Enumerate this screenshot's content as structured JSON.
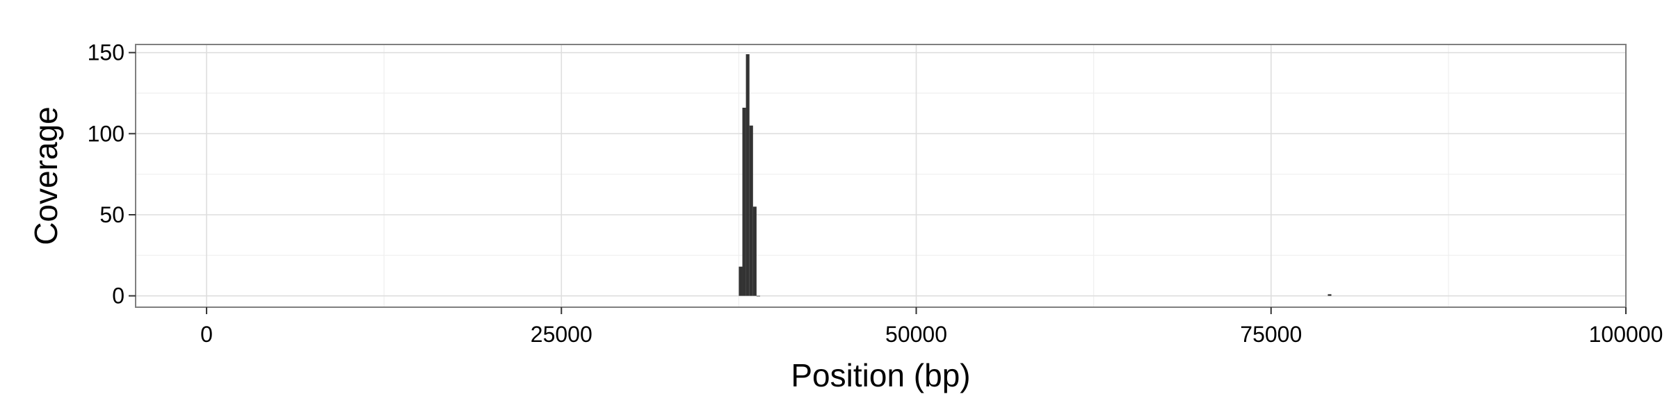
{
  "chart_data": {
    "type": "bar",
    "title": "",
    "xlabel": "Position (bp)",
    "ylabel": "Coverage",
    "xlim": [
      -5000,
      100000
    ],
    "ylim": [
      -7,
      155
    ],
    "x_ticks": [
      0,
      25000,
      50000,
      75000,
      100000
    ],
    "x_tick_labels": [
      "0",
      "25000",
      "50000",
      "75000",
      "100000"
    ],
    "y_ticks": [
      0,
      50,
      100,
      150
    ],
    "y_tick_labels": [
      "0",
      "50",
      "100",
      "150"
    ],
    "bin_width": 250,
    "grid": true,
    "legend": "none",
    "series": [
      {
        "x": [
          37500,
          37750,
          38000,
          38250,
          38500,
          38750,
          79000
        ],
        "values": [
          18,
          116,
          149,
          105,
          55,
          0,
          1
        ]
      }
    ]
  },
  "colors": {
    "bar": "#333333",
    "panel_border": "#7f7f7f",
    "grid_major": "#dedede",
    "grid_minor": "#efefef",
    "tick": "#333333"
  }
}
